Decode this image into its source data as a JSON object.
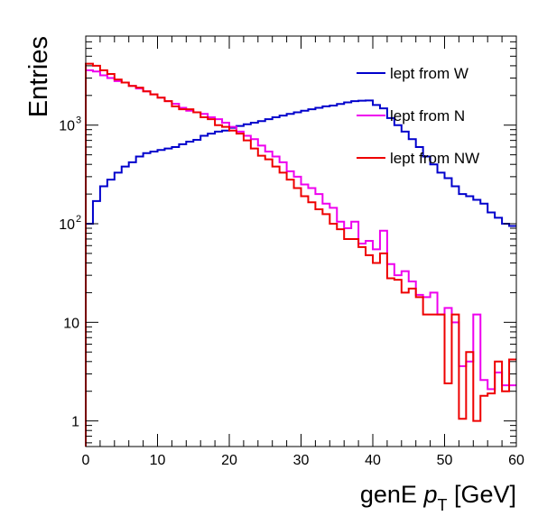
{
  "chart_data": {
    "type": "line",
    "step": true,
    "xlabel_prefix": "genE ",
    "xlabel_var": "p",
    "xlabel_sub": "T",
    "xlabel_suffix": " [GeV]",
    "ylabel": "Entries",
    "xlim": [
      0,
      60
    ],
    "ylim": [
      0.55,
      8000
    ],
    "yscale": "log",
    "grid": false,
    "legend_position": "top-right",
    "x_ticks": [
      0,
      10,
      20,
      30,
      40,
      50,
      60
    ],
    "x_tick_labels": [
      "0",
      "10",
      "20",
      "30",
      "40",
      "50",
      "60"
    ],
    "y_ticks": [
      {
        "value": 1,
        "base": "1",
        "exp": ""
      },
      {
        "value": 10,
        "base": "10",
        "exp": ""
      },
      {
        "value": 100,
        "base": "10",
        "exp": "2"
      },
      {
        "value": 1000,
        "base": "10",
        "exp": "3"
      }
    ],
    "bin_edges": [
      0,
      1,
      2,
      3,
      4,
      5,
      6,
      7,
      8,
      9,
      10,
      11,
      12,
      13,
      14,
      15,
      16,
      17,
      18,
      19,
      20,
      21,
      22,
      23,
      24,
      25,
      26,
      27,
      28,
      29,
      30,
      31,
      32,
      33,
      34,
      35,
      36,
      37,
      38,
      39,
      40,
      41,
      42,
      43,
      44,
      45,
      46,
      47,
      48,
      49,
      50,
      51,
      52,
      53,
      54,
      55,
      56,
      57,
      58,
      59,
      60
    ],
    "series": [
      {
        "name": "lept from W",
        "color": "#0000cc",
        "values": [
          100,
          170,
          240,
          280,
          330,
          380,
          420,
          480,
          520,
          540,
          560,
          580,
          600,
          640,
          680,
          710,
          780,
          820,
          860,
          880,
          940,
          980,
          1020,
          1060,
          1100,
          1150,
          1200,
          1250,
          1300,
          1350,
          1400,
          1450,
          1500,
          1550,
          1580,
          1640,
          1700,
          1750,
          1770,
          1780,
          1600,
          1480,
          1180,
          1000,
          860,
          720,
          600,
          480,
          400,
          330,
          290,
          240,
          200,
          190,
          175,
          160,
          130,
          115,
          100,
          95
        ]
      },
      {
        "name": "lept from N",
        "color": "#ee00ee",
        "values": [
          3600,
          3500,
          3200,
          3000,
          2800,
          2700,
          2500,
          2350,
          2200,
          2050,
          1900,
          1750,
          1650,
          1500,
          1400,
          1350,
          1300,
          1200,
          1150,
          1060,
          960,
          860,
          780,
          720,
          620,
          540,
          480,
          420,
          340,
          300,
          250,
          230,
          200,
          160,
          145,
          105,
          90,
          105,
          63,
          67,
          55,
          85,
          39,
          30,
          33,
          26,
          19,
          18,
          20,
          12,
          14,
          10,
          3.6,
          4.0,
          12,
          2.6,
          2.1,
          3.1,
          2.3,
          2.3
        ]
      },
      {
        "name": "lept from NW",
        "color": "#ee0000",
        "values": [
          4200,
          4000,
          3600,
          3300,
          2900,
          2700,
          2500,
          2400,
          2200,
          2050,
          1900,
          1750,
          1550,
          1450,
          1450,
          1350,
          1200,
          1150,
          1000,
          960,
          880,
          820,
          700,
          580,
          490,
          450,
          380,
          330,
          280,
          230,
          190,
          165,
          140,
          125,
          100,
          88,
          70,
          70,
          58,
          48,
          40,
          50,
          28,
          27,
          20,
          22,
          18,
          12,
          12,
          12,
          2.4,
          12,
          1.05,
          5,
          1.0,
          1.8,
          1.9,
          4,
          2.0,
          4.2
        ]
      }
    ]
  }
}
